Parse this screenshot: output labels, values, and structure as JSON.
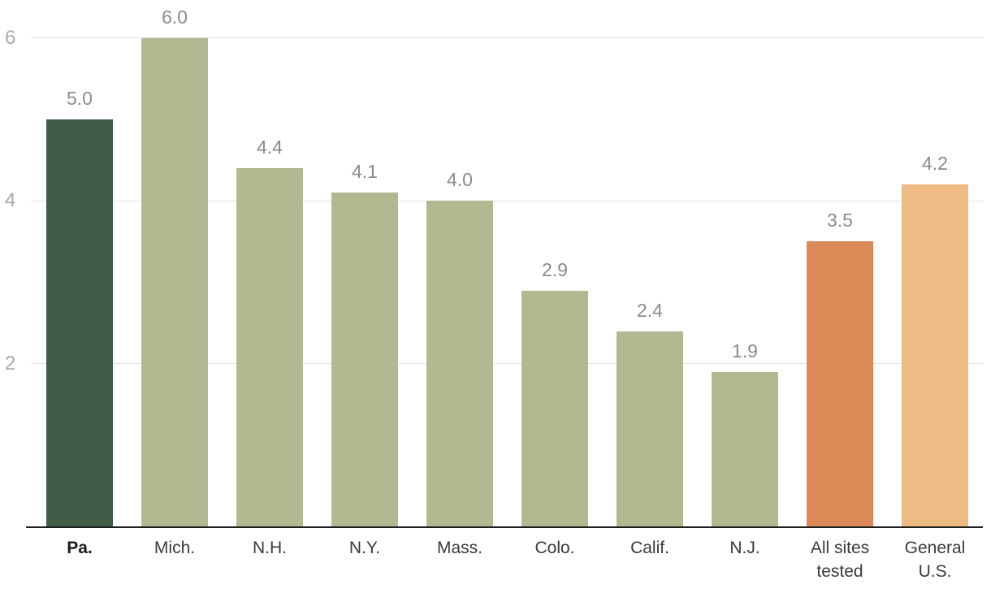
{
  "chart_data": {
    "type": "bar",
    "categories": [
      "Pa.",
      "Mich.",
      "N.H.",
      "N.Y.",
      "Mass.",
      "Colo.",
      "Calif.",
      "N.J.",
      "All sites tested",
      "General U.S."
    ],
    "category_lines": [
      [
        "Pa."
      ],
      [
        "Mich."
      ],
      [
        "N.H."
      ],
      [
        "N.Y."
      ],
      [
        "Mass."
      ],
      [
        "Colo."
      ],
      [
        "Calif."
      ],
      [
        "N.J."
      ],
      [
        "All sites",
        "tested"
      ],
      [
        "General",
        "U.S."
      ]
    ],
    "values": [
      5.0,
      6.0,
      4.4,
      4.1,
      4.0,
      2.9,
      2.4,
      1.9,
      3.5,
      4.2
    ],
    "value_labels": [
      "5.0",
      "6.0",
      "4.4",
      "4.1",
      "4.0",
      "2.9",
      "2.4",
      "1.9",
      "3.5",
      "4.2"
    ],
    "bar_colors": [
      "#3E5C46",
      "#B2B88F",
      "#B2B88F",
      "#B2B88F",
      "#B2B88F",
      "#B2B88F",
      "#B2B88F",
      "#B2B88F",
      "#DB8A57",
      "#EFBB85"
    ],
    "emphasized_category_index": 0,
    "title": "",
    "xlabel": "",
    "ylabel": "",
    "yticks": [
      2,
      4,
      6
    ],
    "ytick_labels": [
      "2",
      "4",
      "6"
    ],
    "ylim": [
      0,
      6.5
    ],
    "grid": "horizontal",
    "legend": "none",
    "colors": {
      "highlight_bar": "#3E5C46",
      "default_bar": "#B2B88F",
      "all_sites_bar": "#DB8A57",
      "general_us_bar": "#EFBB85",
      "gridline": "#E3E3E3",
      "axis_line": "#1E1E1E",
      "ytick_text": "#A9A9A9",
      "value_text": "#8B8B8B",
      "category_text": "#3B3B3B",
      "emphasized_category_text": "#1A1A1A",
      "background": "#FFFFFF"
    }
  }
}
